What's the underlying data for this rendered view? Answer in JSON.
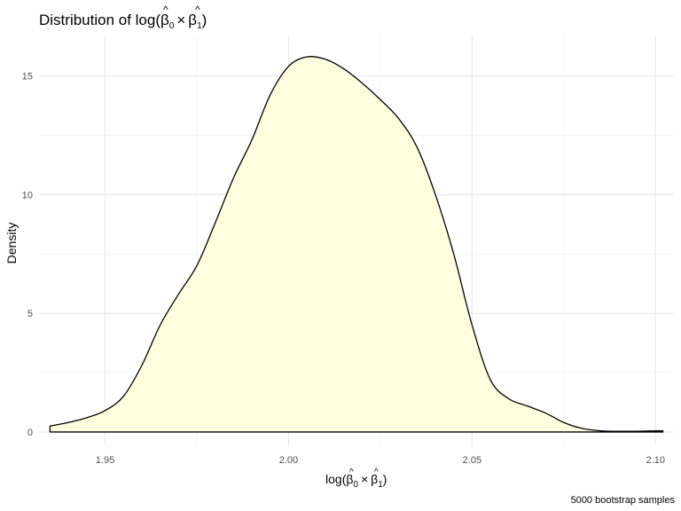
{
  "chart_data": {
    "type": "area",
    "title": "Distribution of log(β̂0 × β̂1)",
    "title_parts": {
      "prefix": "Distribution of log",
      "beta": "β",
      "sub0": "0",
      "times": "×",
      "sub1": "1"
    },
    "xlabel": "log(β̂0 × β̂1)",
    "xlabel_parts": {
      "prefix": "log",
      "beta": "β",
      "sub0": "0",
      "times": "×",
      "sub1": "1"
    },
    "ylabel": "Density",
    "caption": "5000 bootstrap samples",
    "xlim": [
      1.932,
      2.105
    ],
    "ylim": [
      -0.6,
      16.7
    ],
    "x_ticks": [
      1.95,
      2.0,
      2.05,
      2.1
    ],
    "x_tick_labels": [
      "1.95",
      "2.00",
      "2.05",
      "2.10"
    ],
    "y_ticks": [
      0,
      5,
      10,
      15
    ],
    "y_tick_labels": [
      "0",
      "5",
      "10",
      "15"
    ],
    "grid": true,
    "fill_color": "#FFFFE0",
    "line_color": "#000000",
    "series": [
      {
        "x": [
          1.935,
          1.94,
          1.945,
          1.95,
          1.955,
          1.96,
          1.965,
          1.97,
          1.975,
          1.98,
          1.985,
          1.99,
          1.995,
          2.0,
          2.005,
          2.01,
          2.015,
          2.02,
          2.025,
          2.03,
          2.035,
          2.04,
          2.045,
          2.05,
          2.055,
          2.06,
          2.065,
          2.07,
          2.075,
          2.08,
          2.085,
          2.09,
          2.095,
          2.1,
          2.102
        ],
        "y": [
          0.25,
          0.4,
          0.6,
          0.9,
          1.5,
          2.8,
          4.5,
          5.8,
          7.0,
          8.8,
          10.7,
          12.3,
          14.2,
          15.4,
          15.8,
          15.7,
          15.3,
          14.7,
          14.0,
          13.2,
          12.0,
          10.0,
          7.5,
          4.5,
          2.2,
          1.4,
          1.1,
          0.8,
          0.4,
          0.15,
          0.05,
          0.03,
          0.03,
          0.05,
          0.05
        ]
      }
    ]
  }
}
